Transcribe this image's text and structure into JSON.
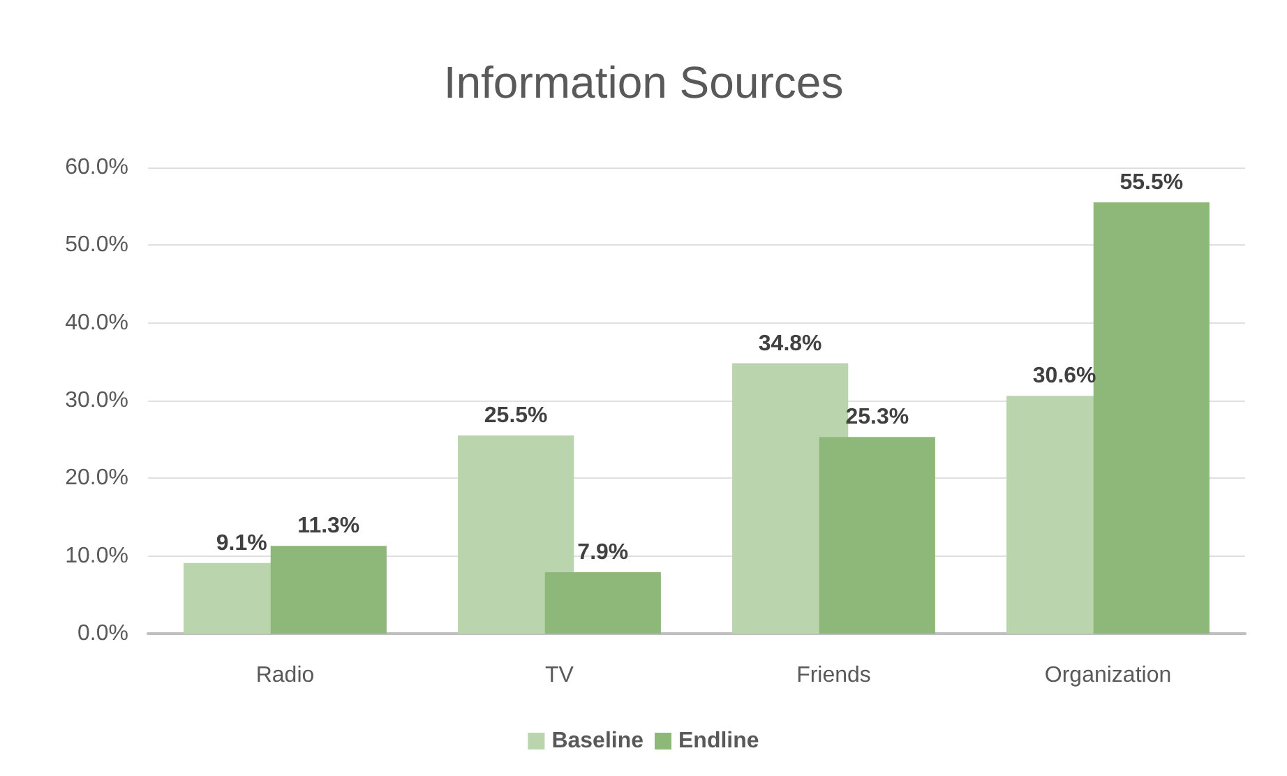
{
  "chart_data": {
    "type": "bar",
    "title": "Information Sources",
    "categories": [
      "Radio",
      "TV",
      "Friends",
      "Organization"
    ],
    "series": [
      {
        "name": "Baseline",
        "color": "#bad5ad",
        "values": [
          9.1,
          25.5,
          34.8,
          30.6
        ],
        "value_labels": [
          "9.1%",
          "25.5%",
          "34.8%",
          "30.6%"
        ]
      },
      {
        "name": "Endline",
        "color": "#8db87a",
        "values": [
          11.3,
          7.9,
          25.3,
          55.5
        ],
        "value_labels": [
          "11.3%",
          "7.9%",
          "25.3%",
          "55.5%"
        ]
      }
    ],
    "ylim": [
      0,
      60
    ],
    "yticks": [
      {
        "value": 0,
        "label": "0.0%"
      },
      {
        "value": 10,
        "label": "10.0%"
      },
      {
        "value": 20,
        "label": "20.0%"
      },
      {
        "value": 30,
        "label": "30.0%"
      },
      {
        "value": 40,
        "label": "40.0%"
      },
      {
        "value": 50,
        "label": "50.0%"
      },
      {
        "value": 60,
        "label": "60.0%"
      }
    ],
    "grid": "y",
    "legend": "bottom"
  }
}
